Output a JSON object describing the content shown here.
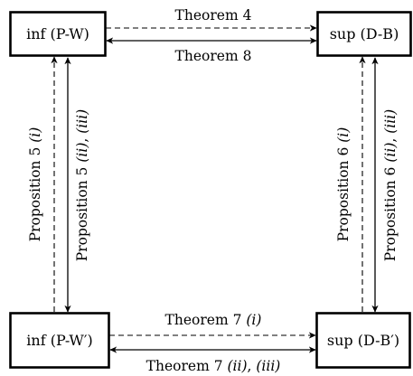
{
  "nodes": {
    "top_left": "inf (P-W)",
    "top_right": "sup (D-B)",
    "bottom_left": "inf (P-W′)",
    "bottom_right": "sup (D-B′)"
  },
  "edges": {
    "top_dashed": {
      "text": "Theorem 4"
    },
    "top_solid": {
      "text": "Theorem 8"
    },
    "bottom_dashed": {
      "text": "Theorem 7 ",
      "italic": "(i)"
    },
    "bottom_solid": {
      "text": "Theorem 7 ",
      "italic_a": "(ii)",
      "sep": ", ",
      "italic_b": "(iii)"
    },
    "left_dashed": {
      "text": "Proposition 5 ",
      "italic": "(i)"
    },
    "left_solid": {
      "text": "Proposition 5 ",
      "italic_a": "(ii)",
      "sep": ", ",
      "italic_b": "(iii)"
    },
    "right_dashed": {
      "text": "Proposition 6 ",
      "italic": "(i)"
    },
    "right_solid": {
      "text": "Proposition 6 ",
      "italic_a": "(ii)",
      "sep": ", ",
      "italic_b": "(iii)"
    }
  }
}
